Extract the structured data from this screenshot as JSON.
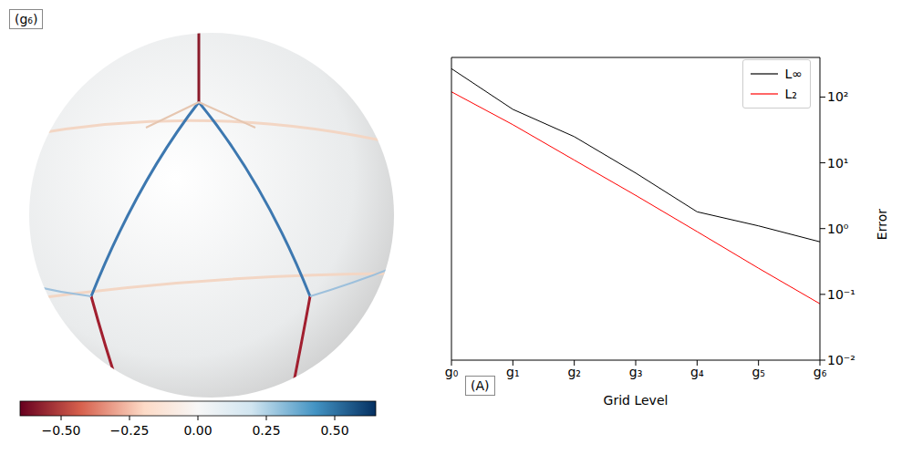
{
  "image": {
    "label": "(g₆)",
    "colorbar": {
      "range": [
        -0.65,
        0.65
      ],
      "ticks": [
        {
          "value": -0.5,
          "label": "−0.50"
        },
        {
          "value": -0.25,
          "label": "−0.25"
        },
        {
          "value": 0,
          "label": "0.00"
        },
        0.25,
        {
          "value": 0.5,
          "label": "0.50"
        }
      ]
    }
  },
  "chart_data": {
    "type": "line",
    "panel_label": "(A)",
    "x_label": "Grid Level",
    "y_label": "Error",
    "categories": [
      "g₀",
      "g₁",
      "g₂",
      "g₃",
      "g₄",
      "g₅",
      "g₆"
    ],
    "series": [
      {
        "name": "L∞",
        "color": "#000000",
        "line_style": "solid",
        "values": [
          270,
          65,
          25,
          7,
          1.8,
          1.1,
          0.63
        ]
      },
      {
        "name": "L₂",
        "color": "#ff0000",
        "line_style": "solid",
        "values": [
          120,
          38,
          11,
          3.2,
          0.9,
          0.25,
          0.072
        ]
      }
    ],
    "ylim": [
      0.01,
      400
    ],
    "yticks": [
      {
        "value": 0.01,
        "label": "10⁻²"
      },
      {
        "value": 0.1,
        "label": "10⁻¹"
      },
      {
        "value": 1,
        "label": "10⁰"
      },
      {
        "value": 10,
        "label": "10¹"
      },
      {
        "value": 100,
        "label": "10²"
      }
    ],
    "log": "y",
    "legend": "upper right",
    "grid": false
  }
}
